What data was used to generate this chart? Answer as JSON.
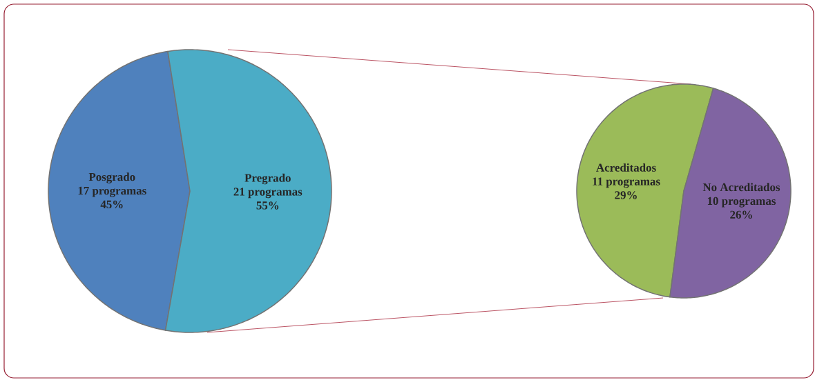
{
  "chart_data": [
    {
      "type": "pie",
      "categories": [
        "Posgrado",
        "Pregrado"
      ],
      "values": [
        17,
        21
      ],
      "value_labels": [
        "17 programas",
        "21 programas"
      ],
      "colors": [
        "#4f81bd",
        "#4bacc6"
      ],
      "annotations": [
        {
          "text": "45%",
          "x": "Posgrado"
        },
        {
          "text": "55%",
          "x": "Pregrado"
        }
      ]
    },
    {
      "type": "pie",
      "categories": [
        "Acreditados",
        "No Acreditados"
      ],
      "values": [
        11,
        10
      ],
      "value_labels": [
        "11 programas",
        "10 programas"
      ],
      "colors": [
        "#9bbb59",
        "#8064a2"
      ],
      "annotations": [
        {
          "text": "29%",
          "x": "Acreditados"
        },
        {
          "text": "26%",
          "x": "No Acreditados"
        }
      ]
    }
  ]
}
